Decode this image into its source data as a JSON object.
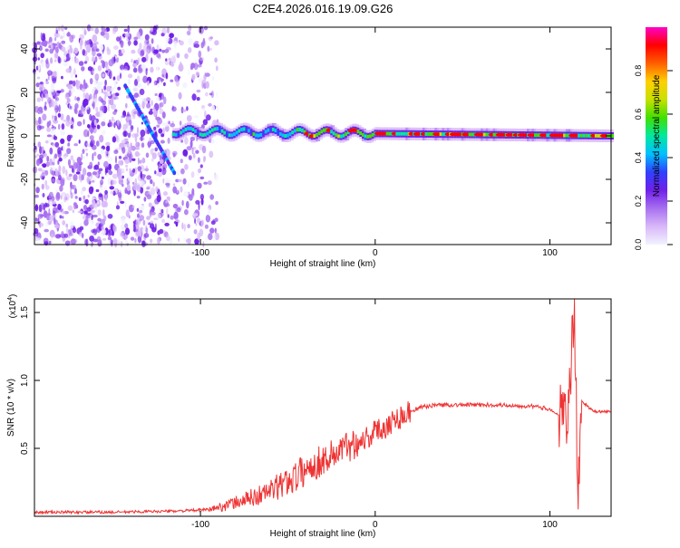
{
  "title": "C2E4.2026.016.19.09.G26",
  "colors": {
    "snr_line": "#ee3333",
    "colormap": [
      "#f2f2ff",
      "#d8b8f8",
      "#a870f0",
      "#7020e8",
      "#3040ff",
      "#00c0ff",
      "#00e8a0",
      "#40e000",
      "#c8e000",
      "#ffd000",
      "#ff6000",
      "#ff0000",
      "#ff00c8"
    ]
  },
  "chart_data": [
    {
      "type": "heatmap",
      "title": "C2E4.2026.016.19.09.G26",
      "xlabel": "Height of straight line (km)",
      "ylabel": "Frequency (Hz)",
      "xlim": [
        -195,
        135
      ],
      "ylim": [
        -50,
        50
      ],
      "x_ticks": [
        -100,
        0,
        100
      ],
      "y_ticks": [
        -40,
        -20,
        0,
        20,
        40
      ],
      "colorbar": {
        "label": "Normalized spectral amplitude",
        "range": [
          0.0,
          1.0
        ],
        "ticks": [
          "0.0",
          "0.2",
          "0.4",
          "0.6",
          "0.8"
        ],
        "tick_values": [
          0.0,
          0.2,
          0.4,
          0.6,
          0.8
        ]
      },
      "features": {
        "noise_region_x": [
          -195,
          -100
        ],
        "diagonal_streak": {
          "x": [
            -143,
            -115
          ],
          "freq": [
            23,
            -17
          ]
        },
        "carrier_line": {
          "x": [
            -115,
            135
          ],
          "freq": [
            2,
            0
          ]
        }
      }
    },
    {
      "type": "line",
      "xlabel": "Height of straight line (km)",
      "ylabel": "SNR (10 * v/v)",
      "y_scale_label": "(x10",
      "y_scale_exponent": "4",
      "y_scale_suffix": ")",
      "xlim": [
        -195,
        135
      ],
      "ylim": [
        0,
        1.6
      ],
      "x_ticks": [
        -100,
        0,
        100
      ],
      "y_ticks": [
        "0.5",
        "1.0",
        "1.5"
      ],
      "y_tick_values": [
        0.5,
        1.0,
        1.5
      ],
      "series": [
        {
          "name": "SNR",
          "x": [
            -195,
            -150,
            -110,
            -95,
            -85,
            -75,
            -65,
            -55,
            -45,
            -35,
            -25,
            -15,
            -5,
            5,
            15,
            25,
            35,
            50,
            70,
            90,
            100,
            105,
            110,
            112,
            114,
            116,
            118,
            125,
            135
          ],
          "values": [
            0.03,
            0.03,
            0.04,
            0.05,
            0.08,
            0.12,
            0.16,
            0.22,
            0.3,
            0.38,
            0.45,
            0.52,
            0.58,
            0.66,
            0.74,
            0.8,
            0.82,
            0.82,
            0.82,
            0.81,
            0.79,
            0.74,
            0.68,
            1.1,
            1.6,
            0.1,
            0.85,
            0.77,
            0.77
          ]
        }
      ]
    }
  ]
}
